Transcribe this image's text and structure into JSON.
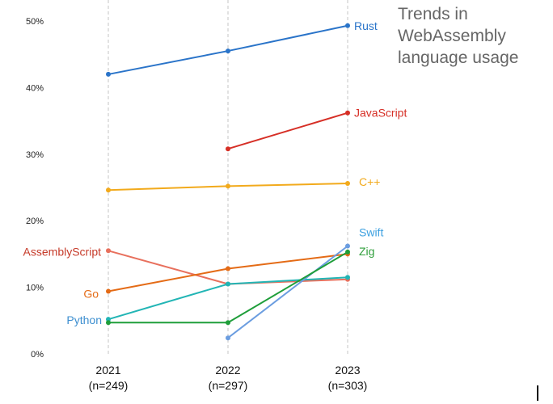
{
  "chart_data": {
    "type": "line",
    "title_lines": [
      "Trends in",
      "WebAssembly",
      "language usage"
    ],
    "xlabel": "",
    "ylabel": "",
    "ylim": [
      0,
      50
    ],
    "y_ticks": [
      {
        "value": 0,
        "label": "0%"
      },
      {
        "value": 10,
        "label": "10%"
      },
      {
        "value": 20,
        "label": "20%"
      },
      {
        "value": 30,
        "label": "30%"
      },
      {
        "value": 40,
        "label": "40%"
      },
      {
        "value": 50,
        "label": "50%"
      }
    ],
    "x": [
      "2021",
      "2022",
      "2023"
    ],
    "x_sublabels": [
      "(n=249)",
      "(n=297)",
      "(n=303)"
    ],
    "grid": "vertical-dashed",
    "legend": "direct-labels",
    "series": [
      {
        "name": "Rust",
        "color": "#2a74c9",
        "values": [
          42.0,
          45.5,
          49.3
        ],
        "label_at": "end"
      },
      {
        "name": "JavaScript",
        "color": "#d62f26",
        "values": [
          null,
          30.8,
          36.2
        ],
        "label_at": "end"
      },
      {
        "name": "C++",
        "color": "#f2aa1c",
        "values": [
          24.6,
          25.2,
          25.6
        ],
        "label_at": "end"
      },
      {
        "name": "AssemblyScript",
        "color": "#e8705d",
        "values": [
          15.5,
          10.5,
          11.2
        ],
        "label_at": "start",
        "label_color": "#c63b2a"
      },
      {
        "name": "Go",
        "color": "#e46b16",
        "values": [
          9.4,
          12.8,
          15.0
        ],
        "label_at": "start"
      },
      {
        "name": "Python",
        "color": "#22b5b5",
        "values": [
          5.2,
          10.5,
          11.5
        ],
        "label_at": "start",
        "label_color": "#3d8fd0"
      },
      {
        "name": "Swift",
        "color": "#6b9de0",
        "values": [
          null,
          2.4,
          16.2
        ],
        "label_at": "end",
        "label_color": "#3ca0e0"
      },
      {
        "name": "Zig",
        "color": "#1f9e3a",
        "values": [
          4.7,
          4.7,
          15.3
        ],
        "label_at": "end",
        "label_color": "#2e9e3a"
      }
    ]
  }
}
